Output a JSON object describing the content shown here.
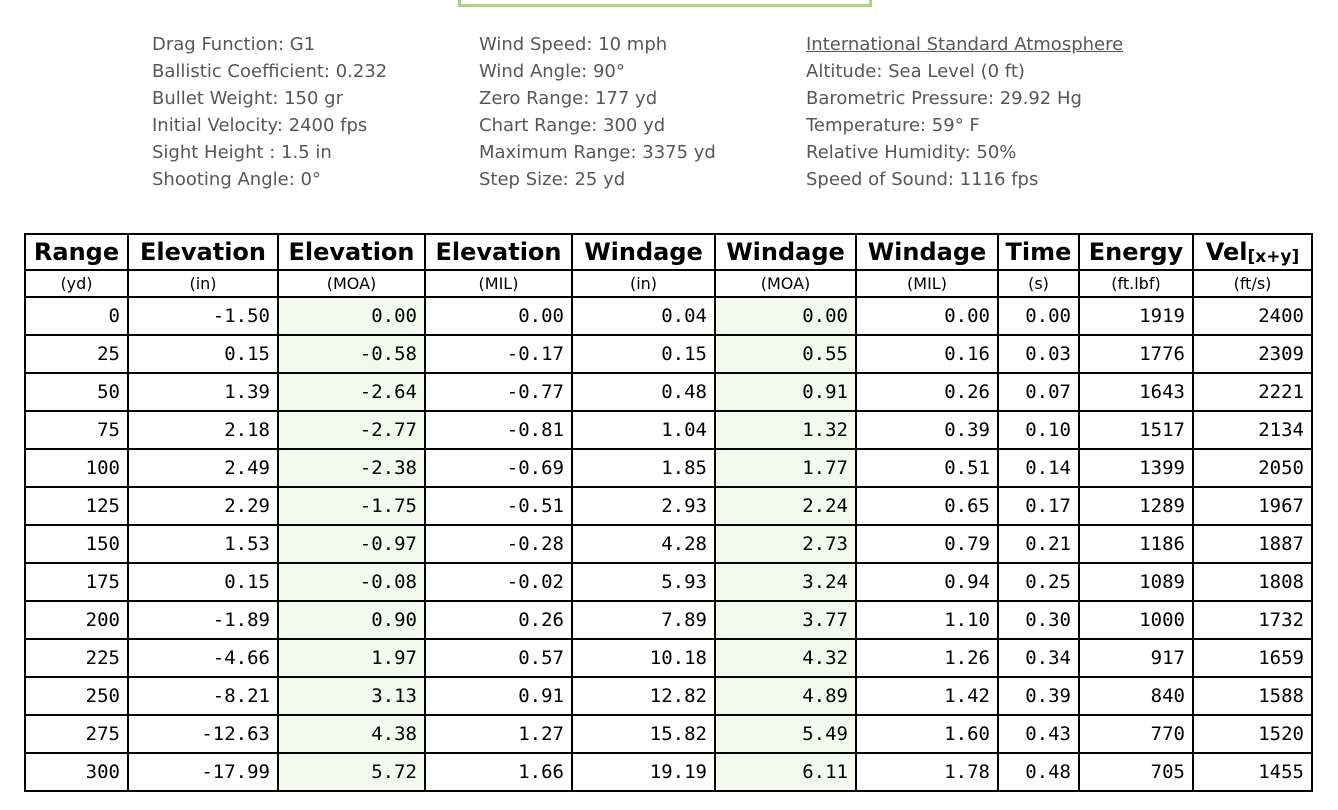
{
  "info_panel": {
    "columns": [
      {
        "lines": [
          "Drag Function: G1",
          "Ballistic Coefficient: 0.232",
          "Bullet Weight: 150 gr",
          "Initial Velocity: 2400 fps",
          "Sight Height : 1.5 in",
          "Shooting Angle: 0°"
        ]
      },
      {
        "lines": [
          "Wind Speed: 10 mph",
          "Wind Angle: 90°",
          "Zero Range: 177 yd",
          "Chart Range: 300 yd",
          "Maximum Range: 3375 yd",
          "Step Size: 25 yd"
        ]
      },
      {
        "heading": "International Standard Atmosphere",
        "lines": [
          "Altitude: Sea Level (0 ft)",
          "Barometric Pressure: 29.92 Hg",
          "Temperature: 59° F",
          "Relative Humidity: 50%",
          "Speed of Sound: 1116 fps"
        ]
      }
    ]
  },
  "table": {
    "columns": [
      {
        "label": "Range",
        "unit": "(yd)"
      },
      {
        "label": "Elevation",
        "unit": "(in)"
      },
      {
        "label": "Elevation",
        "unit": "(MOA)"
      },
      {
        "label": "Elevation",
        "unit": "(MIL)"
      },
      {
        "label": "Windage",
        "unit": "(in)"
      },
      {
        "label": "Windage",
        "unit": "(MOA)"
      },
      {
        "label": "Windage",
        "unit": "(MIL)"
      },
      {
        "label": "Time",
        "unit": "(s)"
      },
      {
        "label": "Energy",
        "unit": "(ft.lbf)"
      },
      {
        "label": "Vel",
        "label_sub": "[x+y]",
        "unit": "(ft/s)"
      }
    ],
    "tinted_columns": [
      2,
      5
    ],
    "rows": [
      [
        "0",
        "-1.50",
        "0.00",
        "0.00",
        "0.04",
        "0.00",
        "0.00",
        "0.00",
        "1919",
        "2400"
      ],
      [
        "25",
        "0.15",
        "-0.58",
        "-0.17",
        "0.15",
        "0.55",
        "0.16",
        "0.03",
        "1776",
        "2309"
      ],
      [
        "50",
        "1.39",
        "-2.64",
        "-0.77",
        "0.48",
        "0.91",
        "0.26",
        "0.07",
        "1643",
        "2221"
      ],
      [
        "75",
        "2.18",
        "-2.77",
        "-0.81",
        "1.04",
        "1.32",
        "0.39",
        "0.10",
        "1517",
        "2134"
      ],
      [
        "100",
        "2.49",
        "-2.38",
        "-0.69",
        "1.85",
        "1.77",
        "0.51",
        "0.14",
        "1399",
        "2050"
      ],
      [
        "125",
        "2.29",
        "-1.75",
        "-0.51",
        "2.93",
        "2.24",
        "0.65",
        "0.17",
        "1289",
        "1967"
      ],
      [
        "150",
        "1.53",
        "-0.97",
        "-0.28",
        "4.28",
        "2.73",
        "0.79",
        "0.21",
        "1186",
        "1887"
      ],
      [
        "175",
        "0.15",
        "-0.08",
        "-0.02",
        "5.93",
        "3.24",
        "0.94",
        "0.25",
        "1089",
        "1808"
      ],
      [
        "200",
        "-1.89",
        "0.90",
        "0.26",
        "7.89",
        "3.77",
        "1.10",
        "0.30",
        "1000",
        "1732"
      ],
      [
        "225",
        "-4.66",
        "1.97",
        "0.57",
        "10.18",
        "4.32",
        "1.26",
        "0.34",
        "917",
        "1659"
      ],
      [
        "250",
        "-8.21",
        "3.13",
        "0.91",
        "12.82",
        "4.89",
        "1.42",
        "0.39",
        "840",
        "1588"
      ],
      [
        "275",
        "-12.63",
        "4.38",
        "1.27",
        "15.82",
        "5.49",
        "1.60",
        "0.43",
        "770",
        "1520"
      ],
      [
        "300",
        "-17.99",
        "5.72",
        "1.66",
        "19.19",
        "6.11",
        "1.78",
        "0.48",
        "705",
        "1455"
      ]
    ]
  },
  "colors": {
    "accent_green_border": "#aed17f",
    "moa_column_tint": "#f3f9ec",
    "info_text": "#565759",
    "table_border": "#000000"
  }
}
